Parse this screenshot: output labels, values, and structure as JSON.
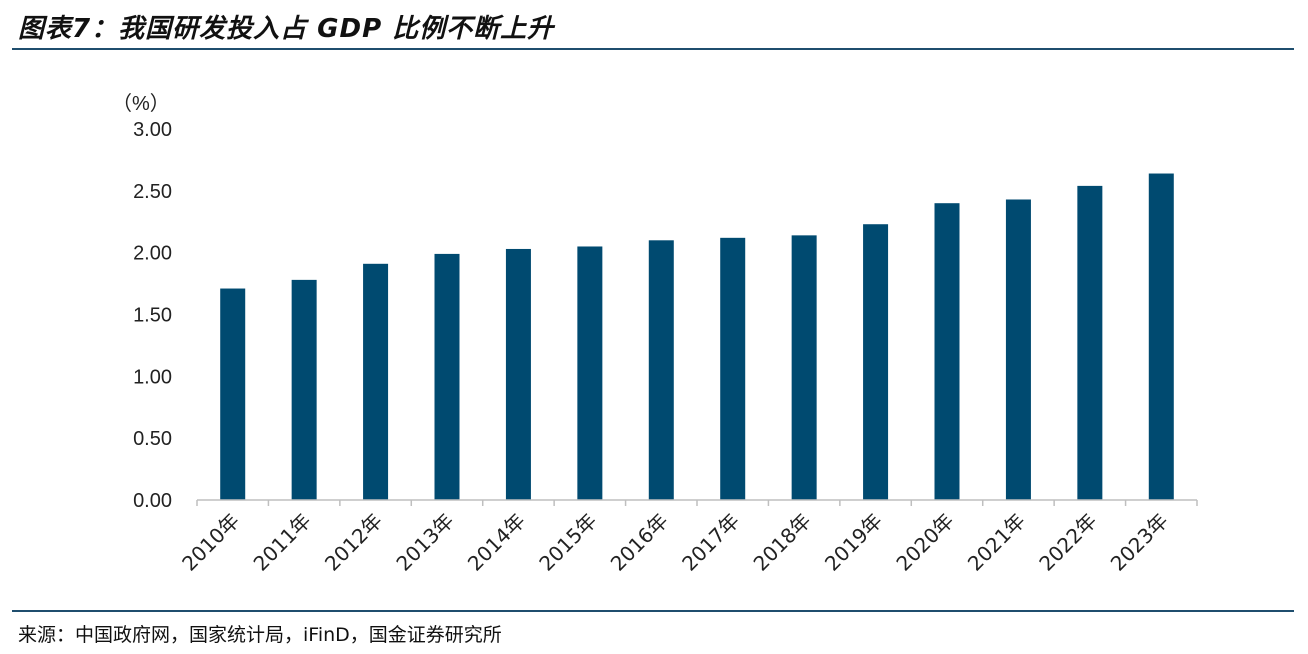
{
  "header": {
    "title": "图表7：我国研发投入占 GDP 比例不断上升"
  },
  "footer": {
    "source": "来源：中国政府网，国家统计局，iFinD，国金证券研究所"
  },
  "colors": {
    "bar": "#004a70",
    "axis": "#bfbfbf",
    "rule": "#1f4e6e"
  },
  "chart_data": {
    "type": "bar",
    "title": "我国研发投入占 GDP 比例不断上升",
    "ylabel": "（%）",
    "xlabel": "",
    "ylim": [
      0,
      3.0
    ],
    "yticks": [
      "0.00",
      "0.50",
      "1.00",
      "1.50",
      "2.00",
      "2.50",
      "3.00"
    ],
    "categories": [
      "2010年",
      "2011年",
      "2012年",
      "2013年",
      "2014年",
      "2015年",
      "2016年",
      "2017年",
      "2018年",
      "2019年",
      "2020年",
      "2021年",
      "2022年",
      "2023年"
    ],
    "values": [
      1.71,
      1.78,
      1.91,
      1.99,
      2.03,
      2.05,
      2.1,
      2.12,
      2.14,
      2.23,
      2.4,
      2.43,
      2.54,
      2.64
    ],
    "grid": false,
    "legend": "none"
  }
}
